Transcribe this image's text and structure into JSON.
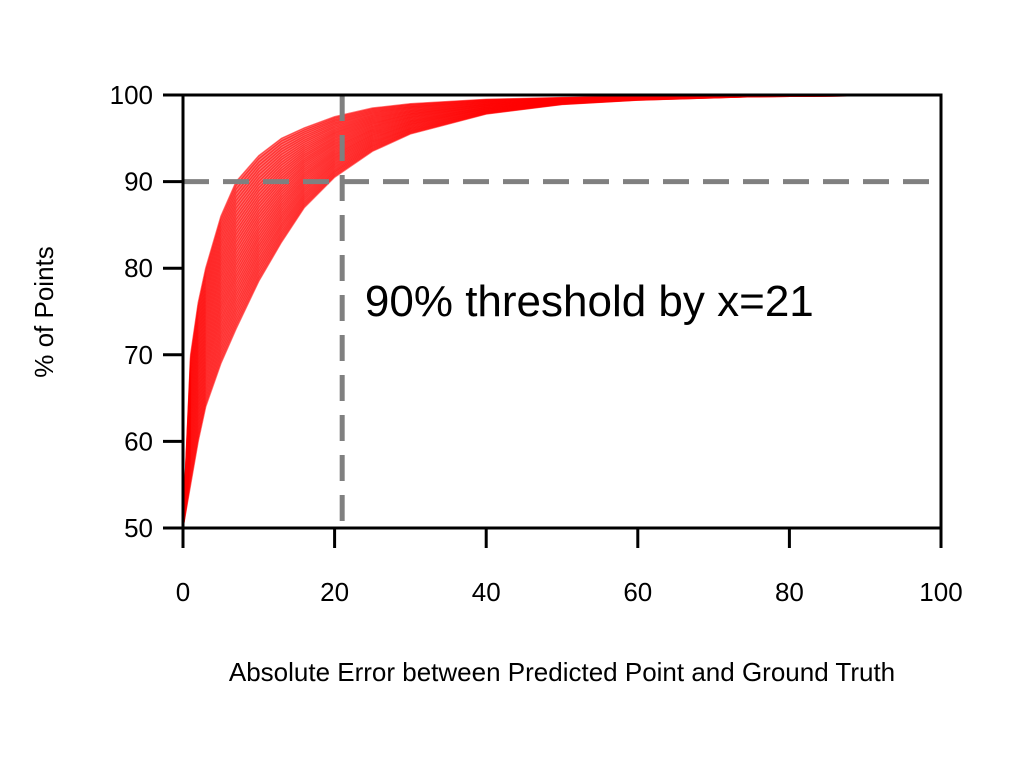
{
  "chart_data": {
    "type": "line",
    "title": "",
    "xlabel": "Absolute Error between Predicted Point and Ground Truth",
    "ylabel": "% of Points",
    "xlim": [
      0,
      100
    ],
    "ylim": [
      50,
      100
    ],
    "xticks": [
      0,
      20,
      40,
      60,
      80,
      100
    ],
    "yticks": [
      50,
      60,
      70,
      80,
      90,
      100
    ],
    "grid": false,
    "legend": "none",
    "series_color": "#ff0000",
    "reference_color": "#808080",
    "series_description": "many overlapping cumulative curves",
    "envelope": {
      "x": [
        0,
        1,
        2,
        3,
        5,
        7,
        10,
        13,
        16,
        20,
        25,
        30,
        40,
        50,
        60,
        75,
        100
      ],
      "upper": [
        50,
        70,
        76,
        80,
        86,
        90,
        93,
        95,
        96.2,
        97.5,
        98.5,
        99,
        99.5,
        99.7,
        99.85,
        99.95,
        100
      ],
      "lower": [
        50,
        55,
        60,
        64,
        69,
        73,
        78.5,
        83,
        87,
        90.5,
        93.5,
        95.5,
        97.8,
        98.9,
        99.4,
        99.8,
        100
      ]
    },
    "reference_lines": [
      {
        "axis": "y",
        "value": 90,
        "style": "dashed"
      },
      {
        "axis": "x",
        "value": 21,
        "style": "dashed"
      }
    ],
    "annotations": [
      {
        "text": "90% threshold by x=21",
        "x": 24,
        "y": 74.5
      }
    ]
  }
}
